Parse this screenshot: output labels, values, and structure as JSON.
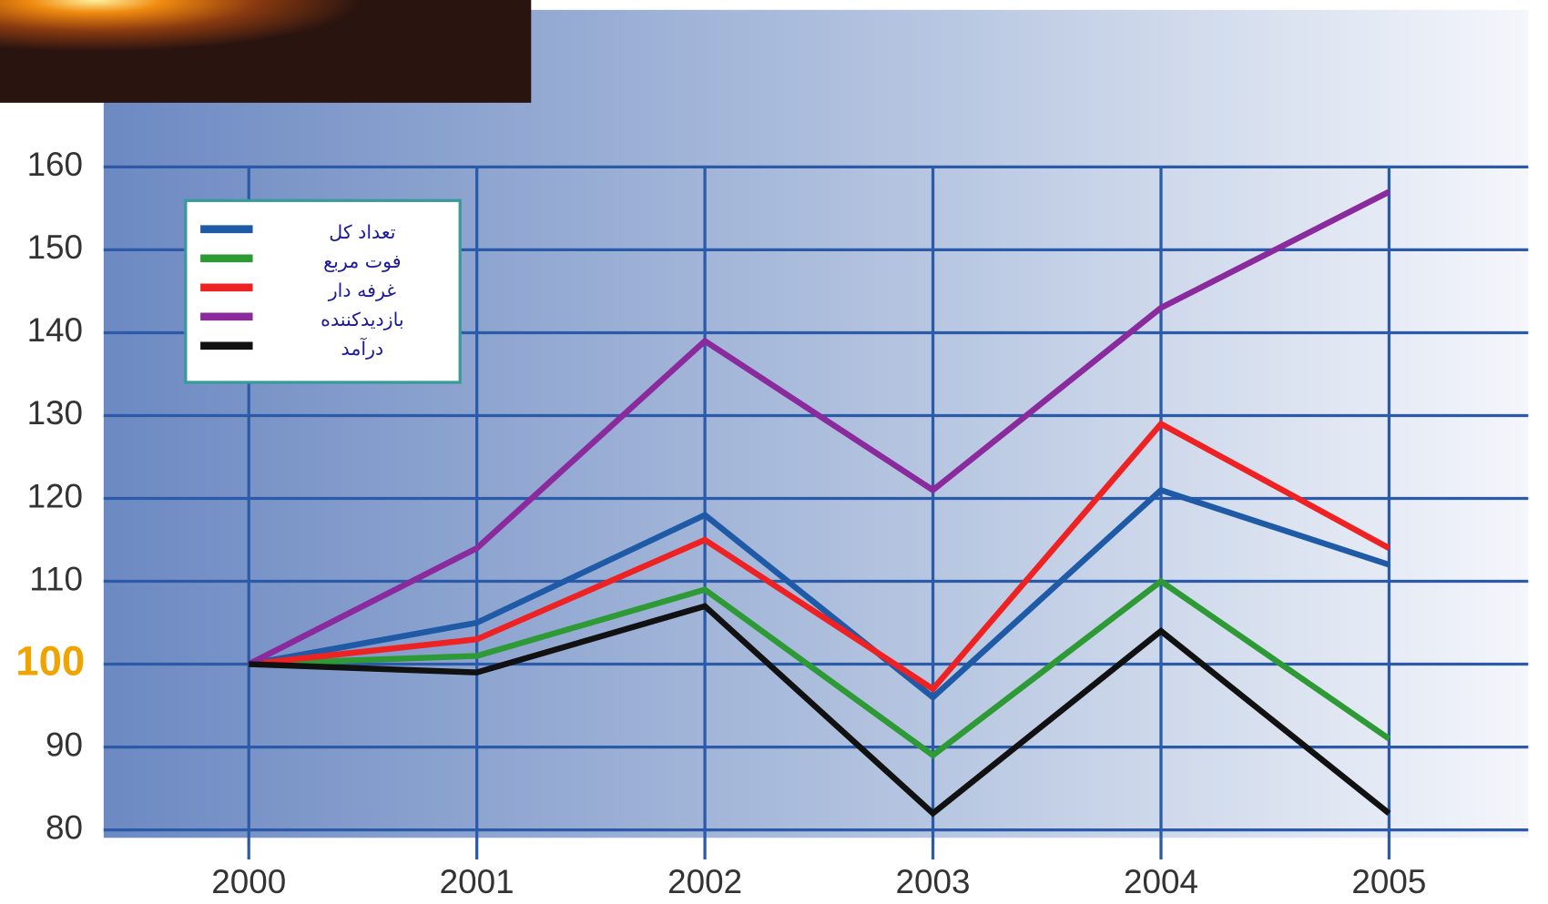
{
  "chart_data": {
    "type": "line",
    "categories": [
      "2000",
      "2001",
      "2002",
      "2003",
      "2004",
      "2005"
    ],
    "series": [
      {
        "name": "تعداد کل",
        "color": "#1f5aa6",
        "values": [
          100,
          105,
          118,
          96,
          121,
          112
        ]
      },
      {
        "name": "فوت مربع",
        "color": "#2e9a35",
        "values": [
          100,
          101,
          109,
          89,
          110,
          91
        ]
      },
      {
        "name": "غرفه دار",
        "color": "#ee2222",
        "values": [
          100,
          103,
          115,
          97,
          129,
          114
        ]
      },
      {
        "name": "بازدیدکننده",
        "color": "#8a2a9c",
        "values": [
          100,
          114,
          139,
          121,
          143,
          157
        ]
      },
      {
        "name": "درآمد",
        "color": "#111111",
        "values": [
          100,
          99,
          107,
          82,
          104,
          82
        ]
      }
    ],
    "ylim": [
      80,
      160
    ],
    "yticks": [
      80,
      90,
      100,
      110,
      120,
      130,
      140,
      150,
      160
    ],
    "highlighted_ytick": 100,
    "highlight_color": "#f0a400",
    "grid": true,
    "grid_color": "#2a5aa8"
  }
}
